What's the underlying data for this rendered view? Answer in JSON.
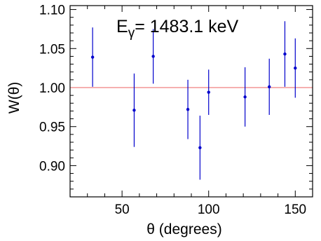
{
  "chart_data": {
    "type": "scatter",
    "title": "",
    "annotation": {
      "prefix": "E",
      "subscript": "γ",
      "text": "= 1483.1 keV"
    },
    "xlabel": "θ (degrees)",
    "ylabel": "W(θ)",
    "xlim": [
      20,
      160
    ],
    "ylim": [
      0.86,
      1.105
    ],
    "x_ticks_major": [
      50,
      100,
      150
    ],
    "x_ticks_minor_step": 10,
    "x_tick_labels": [
      "50",
      "100",
      "150"
    ],
    "y_ticks_major": [
      0.9,
      0.95,
      1.0,
      1.05,
      1.1
    ],
    "y_ticks_minor_step": 0.01,
    "y_tick_labels": [
      "0.90",
      "0.95",
      "1.00",
      "1.05",
      "1.10"
    ],
    "reference_line": {
      "y": 1.0,
      "color": "#f08080"
    },
    "point_color": "#0000cc",
    "points": [
      {
        "x": 33,
        "y": 1.039,
        "err": 0.038
      },
      {
        "x": 57,
        "y": 0.971,
        "err": 0.047
      },
      {
        "x": 68,
        "y": 1.04,
        "err": 0.035
      },
      {
        "x": 88,
        "y": 0.972,
        "err": 0.038
      },
      {
        "x": 95,
        "y": 0.923,
        "err": 0.041
      },
      {
        "x": 100,
        "y": 0.994,
        "err": 0.029
      },
      {
        "x": 121,
        "y": 0.988,
        "err": 0.038
      },
      {
        "x": 135,
        "y": 1.001,
        "err": 0.036
      },
      {
        "x": 144,
        "y": 1.043,
        "err": 0.042
      },
      {
        "x": 150,
        "y": 1.025,
        "err": 0.038
      }
    ]
  }
}
